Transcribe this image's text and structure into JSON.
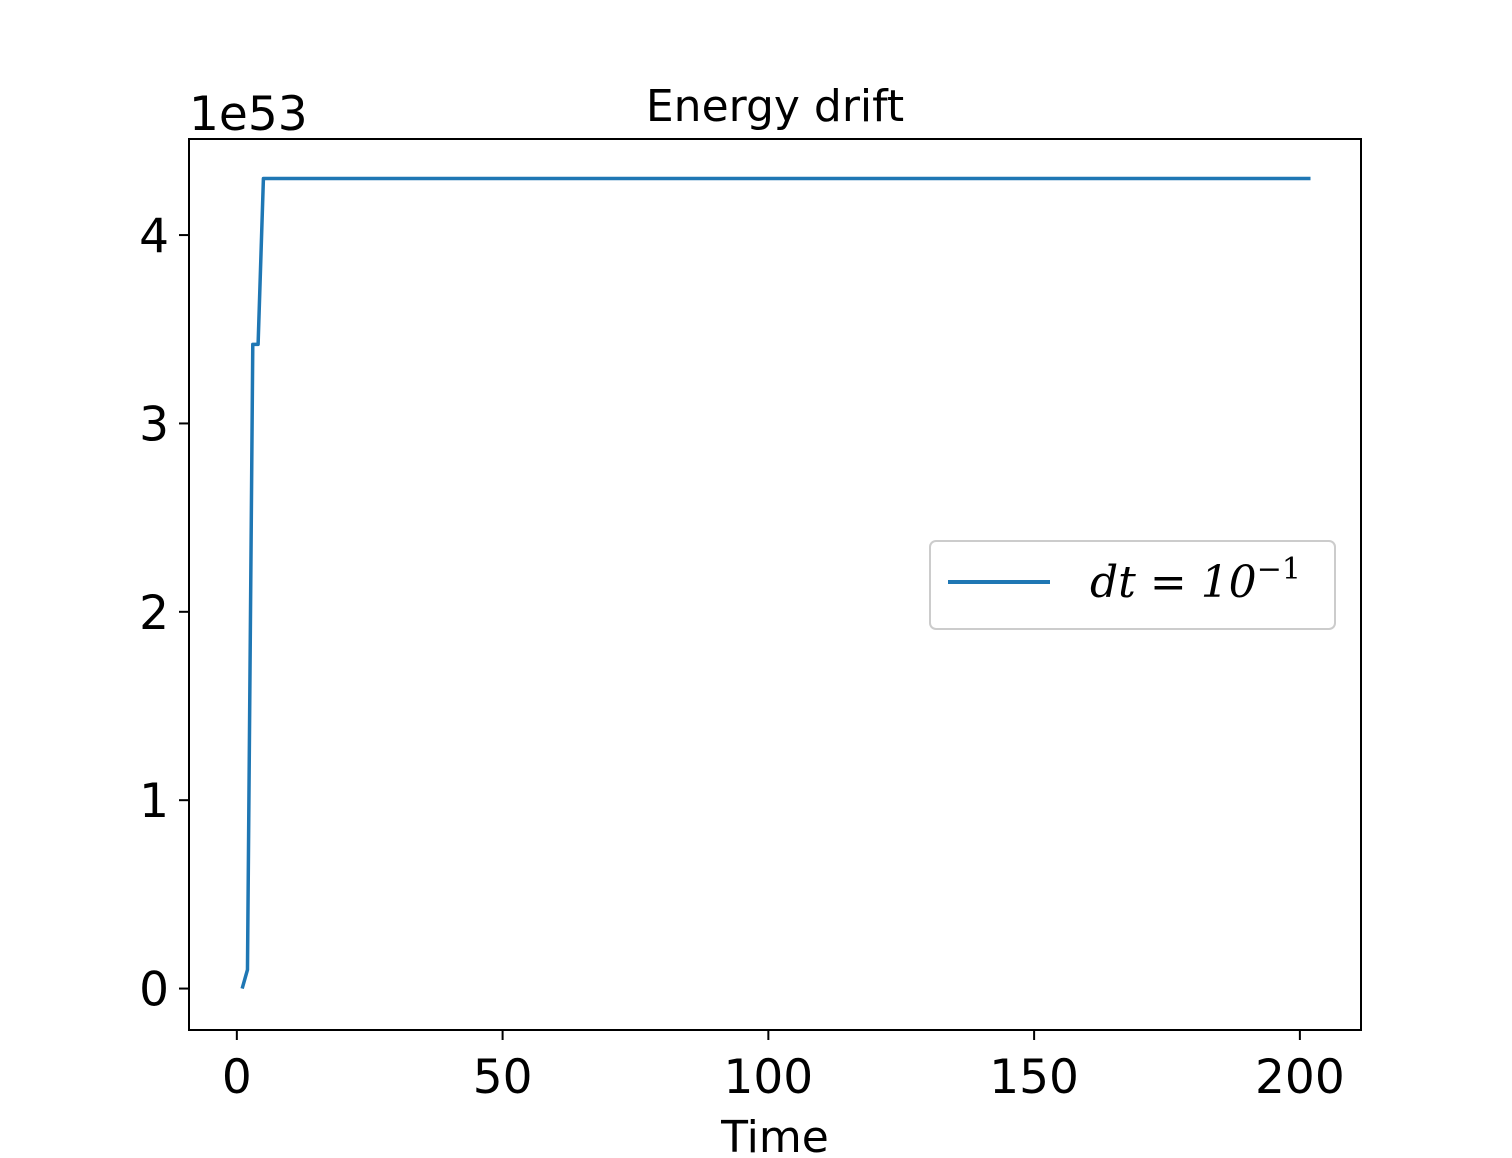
{
  "chart_data": {
    "type": "line",
    "title": "Energy drift",
    "xlabel": "Time",
    "ylabel": "",
    "y_offset_label": "1e53",
    "xlim": [
      -9,
      211.5
    ],
    "ylim": [
      -0.22,
      4.51
    ],
    "xticks": [
      0,
      50,
      100,
      150,
      200
    ],
    "xtick_labels": [
      "0",
      "50",
      "100",
      "150",
      "200"
    ],
    "yticks": [
      0,
      1,
      2,
      3,
      4
    ],
    "ytick_labels": [
      "0",
      "1",
      "2",
      "3",
      "4"
    ],
    "grid": false,
    "legend_position": "center-right",
    "series": [
      {
        "name": "dt = 10^-1",
        "color": "#1f77b4",
        "x": [
          1,
          2,
          3,
          4,
          5,
          202
        ],
        "y": [
          0.0,
          0.1,
          3.42,
          3.42,
          4.3,
          4.3
        ]
      }
    ]
  },
  "legend": {
    "text_main": "dt = 10",
    "text_sup": "−1"
  }
}
